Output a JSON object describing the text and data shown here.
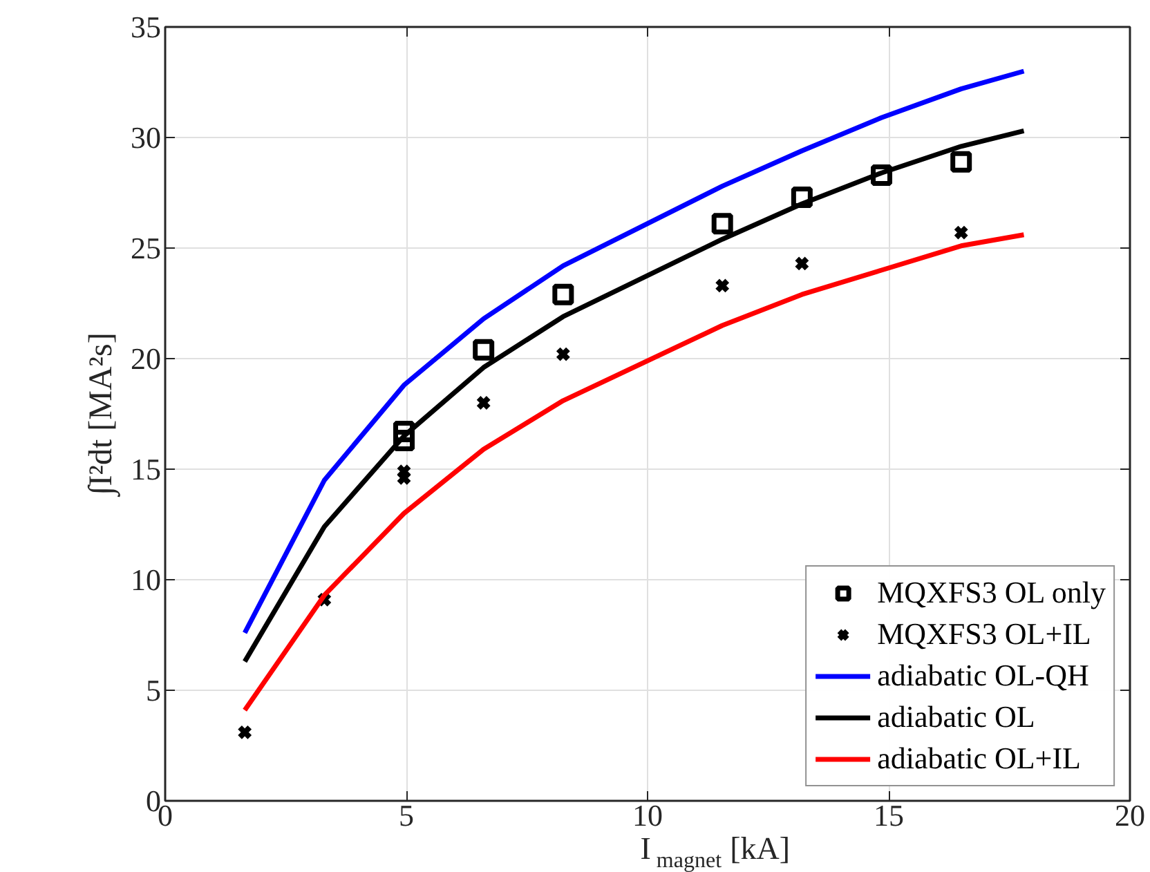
{
  "chart_data": {
    "type": "line",
    "xlabel": "I$_{magnet}$ [kA]",
    "ylabel": "∫I²dt [MA²s]",
    "xlim": [
      0,
      20
    ],
    "ylim": [
      0,
      35
    ],
    "xticks": [
      0,
      5,
      10,
      15,
      20
    ],
    "yticks": [
      0,
      5,
      10,
      15,
      20,
      25,
      30,
      35
    ],
    "grid": true,
    "legend": "bottom right",
    "series": [
      {
        "name": "MQXFS3 OL only",
        "type": "scatter",
        "marker": "square",
        "color": "#000000",
        "x": [
          4.95,
          4.95,
          6.6,
          8.25,
          11.55,
          13.2,
          14.85,
          16.5
        ],
        "values": [
          16.3,
          16.7,
          20.4,
          22.9,
          26.1,
          27.3,
          28.3,
          28.9
        ]
      },
      {
        "name": "MQXFS3 OL+IL",
        "type": "scatter",
        "marker": "cross",
        "color": "#000000",
        "x": [
          1.65,
          3.3,
          4.95,
          4.95,
          6.6,
          8.25,
          11.55,
          13.2,
          16.5
        ],
        "values": [
          3.1,
          9.1,
          14.6,
          14.9,
          18.0,
          20.2,
          23.3,
          24.3,
          25.7
        ]
      },
      {
        "name": "adiabatic OL-QH",
        "type": "line",
        "color": "#0000ff",
        "x": [
          1.65,
          3.3,
          4.95,
          6.6,
          8.25,
          11.55,
          13.2,
          14.85,
          16.5,
          17.8
        ],
        "values": [
          7.6,
          14.5,
          18.8,
          21.8,
          24.2,
          27.8,
          29.4,
          30.9,
          32.2,
          33.0
        ]
      },
      {
        "name": "adiabatic OL",
        "type": "line",
        "color": "#000000",
        "x": [
          1.65,
          3.3,
          4.95,
          6.6,
          8.25,
          11.55,
          13.2,
          14.85,
          16.5,
          17.8
        ],
        "values": [
          6.3,
          12.4,
          16.5,
          19.6,
          21.9,
          25.4,
          27.0,
          28.4,
          29.6,
          30.3
        ]
      },
      {
        "name": "adiabatic OL+IL",
        "type": "line",
        "color": "#ff0000",
        "x": [
          1.65,
          3.3,
          4.95,
          6.6,
          8.25,
          11.55,
          13.2,
          14.85,
          16.5,
          17.8
        ],
        "values": [
          4.1,
          9.3,
          13.0,
          15.9,
          18.1,
          21.5,
          22.9,
          24.0,
          25.1,
          25.6
        ]
      }
    ]
  }
}
